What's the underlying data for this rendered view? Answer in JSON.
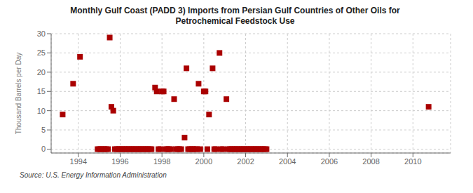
{
  "chart_data": {
    "type": "scatter",
    "title": "Monthly Gulf Coast (PADD 3) Imports from Persian Gulf Countries of Other Oils for\nPetrochemical Feedstock Use",
    "y_label": "Thousand Barrels per Day",
    "source": "Source: U.S. Energy Information Administration",
    "color": "#aa0000",
    "marker": "square",
    "grid": true,
    "xlim": [
      1992.7,
      2011.8
    ],
    "ylim": [
      -1,
      30
    ],
    "xticks": [
      1994,
      1996,
      1998,
      2000,
      2002,
      2004,
      2006,
      2008,
      2010
    ],
    "yticks": [
      0,
      5,
      10,
      15,
      20,
      25,
      30
    ],
    "x": [
      1993.25,
      1993.75,
      1994.08,
      1995.5,
      1995.58,
      1995.67,
      1994.92,
      1995.0,
      1995.08,
      1995.17,
      1995.25,
      1995.33,
      1995.42,
      1995.75,
      1995.83,
      1995.92,
      1996.0,
      1996.08,
      1996.17,
      1996.25,
      1996.33,
      1996.42,
      1996.5,
      1996.58,
      1996.67,
      1996.75,
      1996.83,
      1996.92,
      1997.0,
      1997.08,
      1997.17,
      1997.25,
      1997.33,
      1997.42,
      1997.5,
      1997.67,
      1997.75,
      1997.83,
      1997.92,
      1998.0,
      1998.08,
      1998.17,
      1998.25,
      1998.33,
      1998.42,
      1998.58,
      1998.67,
      1998.75,
      1998.83,
      1998.92,
      1999.08,
      1999.17,
      1999.25,
      1999.33,
      1999.42,
      1999.5,
      1999.58,
      1999.67,
      1999.75,
      1999.83,
      2000.0,
      2000.08,
      2000.17,
      2000.25,
      2000.42,
      2000.5,
      2000.58,
      2000.75,
      2000.83,
      2000.92,
      2001.08,
      2001.17,
      2001.25,
      2001.33,
      2001.42,
      2001.5,
      2001.58,
      2001.67,
      2001.75,
      2001.83,
      2001.92,
      2002.0,
      2002.08,
      2002.17,
      2002.25,
      2002.33,
      2002.42,
      2002.5,
      2002.58,
      2002.67,
      2002.75,
      2002.83,
      2002.92,
      2003.0,
      2010.75
    ],
    "values": [
      9,
      17,
      24,
      29,
      11,
      10,
      0,
      0,
      0,
      0,
      0,
      0,
      0,
      0,
      0,
      0,
      0,
      0,
      0,
      0,
      0,
      0,
      0,
      0,
      0,
      0,
      0,
      0,
      0,
      0,
      0,
      0,
      0,
      0,
      0,
      16,
      15,
      0,
      0,
      15,
      15,
      0,
      0,
      0,
      0,
      13,
      0,
      0,
      0,
      0,
      3,
      21,
      0,
      0,
      0,
      0,
      0,
      0,
      17,
      0,
      15,
      15,
      0,
      9,
      21,
      0,
      0,
      25,
      0,
      0,
      13,
      0,
      0,
      0,
      0,
      0,
      0,
      0,
      0,
      0,
      0,
      0,
      0,
      0,
      0,
      0,
      0,
      0,
      0,
      0,
      0,
      0,
      0,
      0,
      11
    ]
  }
}
